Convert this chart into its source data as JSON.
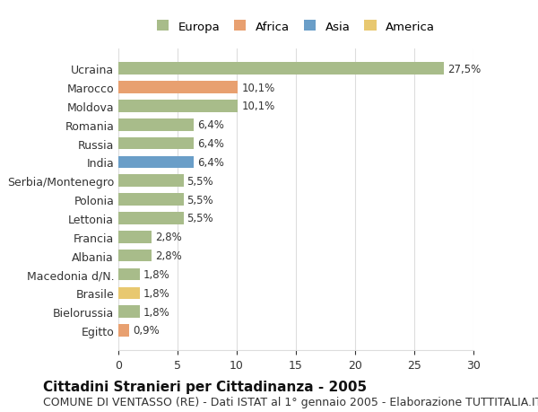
{
  "countries": [
    "Egitto",
    "Bielorussia",
    "Brasile",
    "Macedonia d/N.",
    "Albania",
    "Francia",
    "Lettonia",
    "Polonia",
    "Serbia/Montenegro",
    "India",
    "Russia",
    "Romania",
    "Moldova",
    "Marocco",
    "Ucraina"
  ],
  "values": [
    0.9,
    1.8,
    1.8,
    1.8,
    2.8,
    2.8,
    5.5,
    5.5,
    5.5,
    6.4,
    6.4,
    6.4,
    10.1,
    10.1,
    27.5
  ],
  "labels": [
    "0,9%",
    "1,8%",
    "1,8%",
    "1,8%",
    "2,8%",
    "2,8%",
    "5,5%",
    "5,5%",
    "5,5%",
    "6,4%",
    "6,4%",
    "6,4%",
    "10,1%",
    "10,1%",
    "27,5%"
  ],
  "colors": [
    "#e8a070",
    "#a8bc8a",
    "#e8c870",
    "#a8bc8a",
    "#a8bc8a",
    "#a8bc8a",
    "#a8bc8a",
    "#a8bc8a",
    "#a8bc8a",
    "#6a9ec8",
    "#a8bc8a",
    "#a8bc8a",
    "#a8bc8a",
    "#e8a070",
    "#a8bc8a"
  ],
  "legend_labels": [
    "Europa",
    "Africa",
    "Asia",
    "America"
  ],
  "legend_colors": [
    "#a8bc8a",
    "#e8a070",
    "#6a9ec8",
    "#e8c870"
  ],
  "title_bold": "Cittadini Stranieri per Cittadinanza - 2005",
  "subtitle": "COMUNE DI VENTASSO (RE) - Dati ISTAT al 1° gennaio 2005 - Elaborazione TUTTITALIA.IT",
  "xlim": [
    0,
    30
  ],
  "xticks": [
    0,
    5,
    10,
    15,
    20,
    25,
    30
  ],
  "background_color": "#ffffff",
  "grid_color": "#dddddd",
  "bar_height": 0.65,
  "label_fontsize": 8.5,
  "title_fontsize": 11,
  "subtitle_fontsize": 9,
  "tick_fontsize": 9
}
